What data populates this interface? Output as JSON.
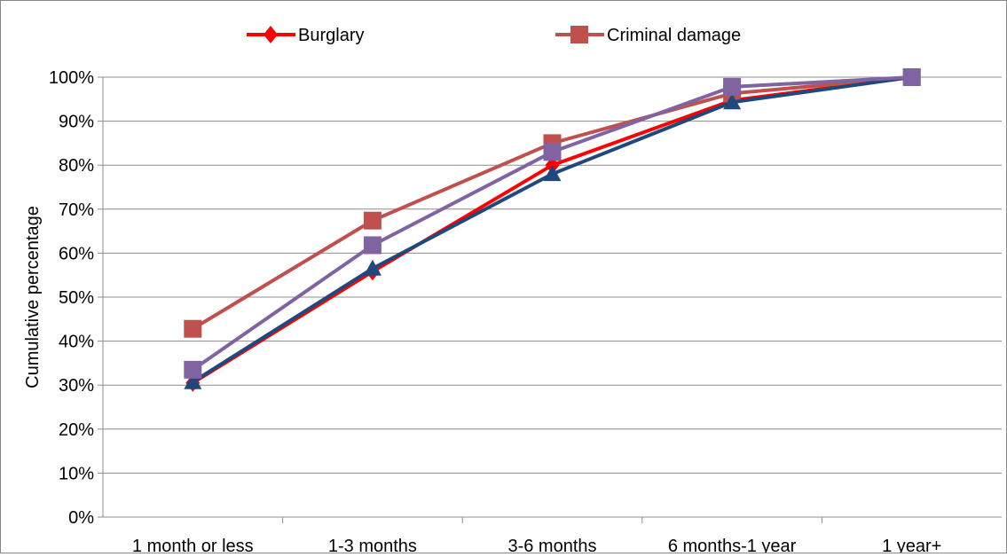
{
  "chart_data": {
    "type": "line",
    "ylabel": "Cumulative percentage",
    "xlabel": "",
    "categories": [
      "1 month or less",
      "1-3 months",
      "3-6 months",
      "6 months-1 year",
      "1 year+"
    ],
    "ylim": [
      0,
      100
    ],
    "yticks": [
      "0%",
      "10%",
      "20%",
      "30%",
      "40%",
      "50%",
      "60%",
      "70%",
      "80%",
      "90%",
      "100%"
    ],
    "grid": true,
    "legend": "top",
    "series": [
      {
        "name": "Burglary",
        "values": [
          30.5,
          55.8,
          80.0,
          94.7,
          100
        ],
        "color": "#ff0000",
        "marker": "diamond"
      },
      {
        "name": "Criminal damage",
        "values": [
          42.8,
          67.4,
          85.0,
          96.3,
          100
        ],
        "color": "#c0504d",
        "marker": "square"
      },
      {
        "values": [
          30.7,
          56.5,
          78.0,
          94.3,
          100
        ],
        "color": "#1f497d",
        "marker": "triangle"
      },
      {
        "values": [
          33.5,
          61.8,
          83.0,
          97.8,
          100
        ],
        "color": "#8064a2",
        "marker": "square"
      }
    ]
  }
}
